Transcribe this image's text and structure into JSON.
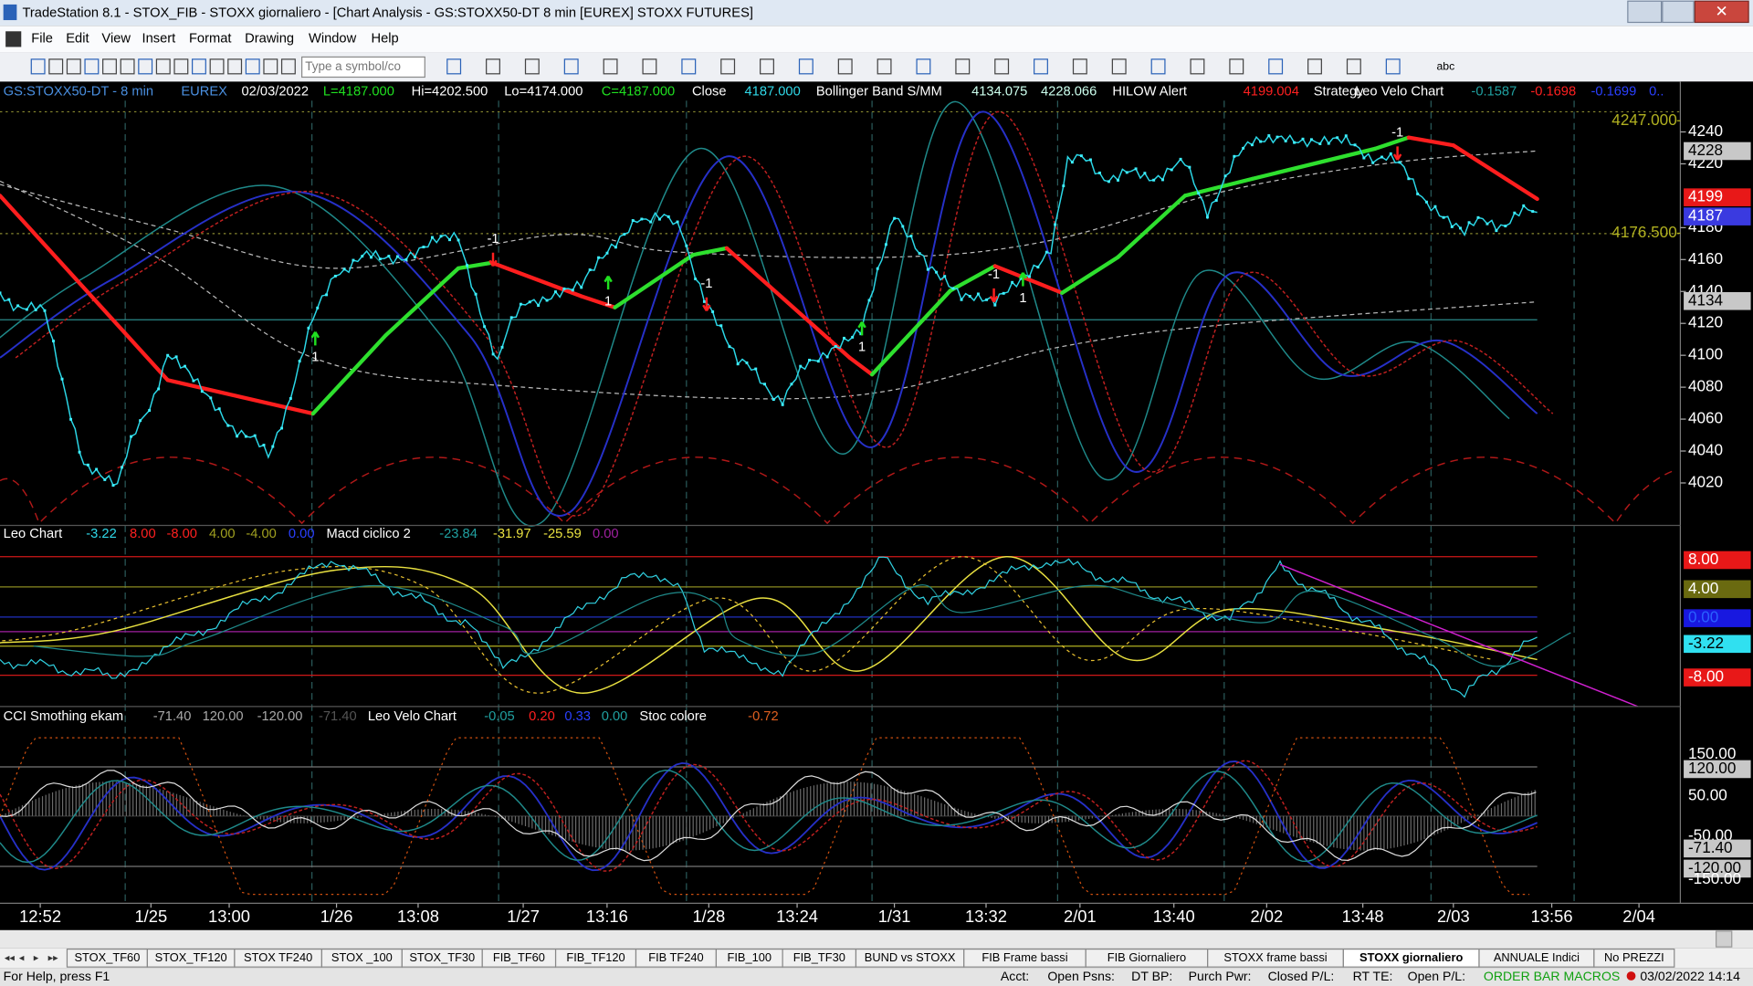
{
  "window": {
    "title": "TradeStation 8.1 - STOX_FIB - STOXX giornaliero - [Chart Analysis - GS:STOXX50-DT  8 min  [EUREX] STOXX FUTURES]"
  },
  "menu": [
    "File",
    "Edit",
    "View",
    "Insert",
    "Format",
    "Drawing",
    "Window",
    "Help"
  ],
  "toolbar": {
    "symbol_input": "Type a symbol/co",
    "text_tool": "abc"
  },
  "chart": {
    "header": [
      "GS:STOXX50-DT - 8 min",
      "EUREX",
      "02/03/2022",
      "L=4187.000",
      "Hi=4202.500",
      "Lo=4174.000",
      "C=4187.000",
      "Close",
      "4187.000",
      "Bollinger Band S/MM",
      "4134.075",
      "4228.066",
      "HILOW Alert",
      "4199.004",
      "Strategy",
      "Leo Velo Chart",
      "-0.1587",
      "-0.1698",
      "-0.1699",
      "0.."
    ],
    "price_ticks": [
      4240,
      4220,
      4180,
      4160,
      4140,
      4120,
      4100,
      4080,
      4060,
      4040,
      4020
    ],
    "price_markers": [
      {
        "value": 4247,
        "label": "4247.000"
      },
      4228,
      4199,
      4187,
      4134,
      {
        "value": 4176.5,
        "label": "4176.500"
      }
    ],
    "signals": [
      1,
      -1,
      1,
      -1,
      1,
      -1,
      1,
      -1
    ],
    "pane2_header": [
      "Leo Chart",
      "-3.22",
      "8.00",
      "-8.00",
      "4.00",
      "-4.00",
      "0.00",
      "Macd ciclico 2",
      "-23.84",
      "-31.97",
      "-25.59",
      "0.00"
    ],
    "pane2_axis": [
      "8.00",
      "4.00",
      "0.00",
      "-3.22",
      "-8.00"
    ],
    "pane3_header": [
      "CCI Smothing ekam",
      "-71.40",
      "120.00",
      "-120.00",
      "-71.40",
      "Leo Velo Chart",
      "-0.05",
      "0.20",
      "0.33",
      "0.00",
      "Stoc colore",
      "-0.72"
    ],
    "pane3_axis": [
      "150.00",
      "120.00",
      "50.00",
      "-50.00",
      "-71.40",
      "-120.00",
      "-150.00"
    ],
    "time_axis": [
      "12:52",
      "1/25",
      "13:00",
      "1/26",
      "13:08",
      "1/27",
      "13:16",
      "1/28",
      "13:24",
      "1/31",
      "13:32",
      "2/01",
      "13:40",
      "2/02",
      "13:48",
      "2/03",
      "13:56",
      "2/04"
    ]
  },
  "tabs": {
    "items": [
      "STOX_TF60",
      "STOX_TF120",
      "STOX TF240",
      "STOX _100",
      "STOX_TF30",
      "FIB_TF60",
      "FIB_TF120",
      "FIB TF240",
      "FIB_100",
      "FIB_TF30",
      "BUND vs STOXX",
      "FIB Frame bassi",
      "FIB Giornaliero",
      "STOXX frame bassi",
      "STOXX giornaliero",
      "ANNUALE Indici",
      "No PREZZI"
    ],
    "active": 14
  },
  "status": [
    "For Help, press F1",
    "Acct:",
    "Open Psns:",
    "DT BP:",
    "Purch Pwr:",
    "Closed P/L:",
    "RT TE:",
    "Open P/L:",
    "ORDER BAR MACROS",
    "03/02/2022 14:14"
  ]
}
